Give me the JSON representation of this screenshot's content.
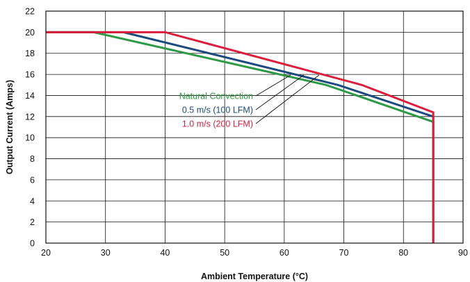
{
  "chart_data": {
    "type": "line",
    "title": "",
    "xlabel": "Ambient Temperature (°C)",
    "ylabel": "Output Current (Amps)",
    "xlim": [
      20,
      90
    ],
    "ylim": [
      0,
      22
    ],
    "xticks": [
      20,
      30,
      40,
      50,
      60,
      70,
      80,
      90
    ],
    "yticks": [
      0,
      2,
      4,
      6,
      8,
      10,
      12,
      14,
      16,
      18,
      20,
      22
    ],
    "grid": true,
    "legend": "annotations with leader lines, center-right",
    "series": [
      {
        "name": "Natural Convection",
        "color": "#2e9a45",
        "points": [
          [
            20,
            20
          ],
          [
            28,
            20
          ],
          [
            67,
            15.0
          ],
          [
            85,
            11.5
          ],
          [
            85,
            0
          ]
        ]
      },
      {
        "name": "0.5 m/s (100 LFM)",
        "color": "#1d4a7e",
        "points": [
          [
            20,
            20
          ],
          [
            33,
            20
          ],
          [
            69,
            15.0
          ],
          [
            85,
            12.0
          ],
          [
            85,
            0
          ]
        ]
      },
      {
        "name": "1.0 m/s (200 LFM)",
        "color": "#dc1e3c",
        "points": [
          [
            20,
            20
          ],
          [
            40,
            20
          ],
          [
            73,
            15.0
          ],
          [
            85,
            12.4
          ],
          [
            85,
            0
          ]
        ]
      }
    ]
  }
}
